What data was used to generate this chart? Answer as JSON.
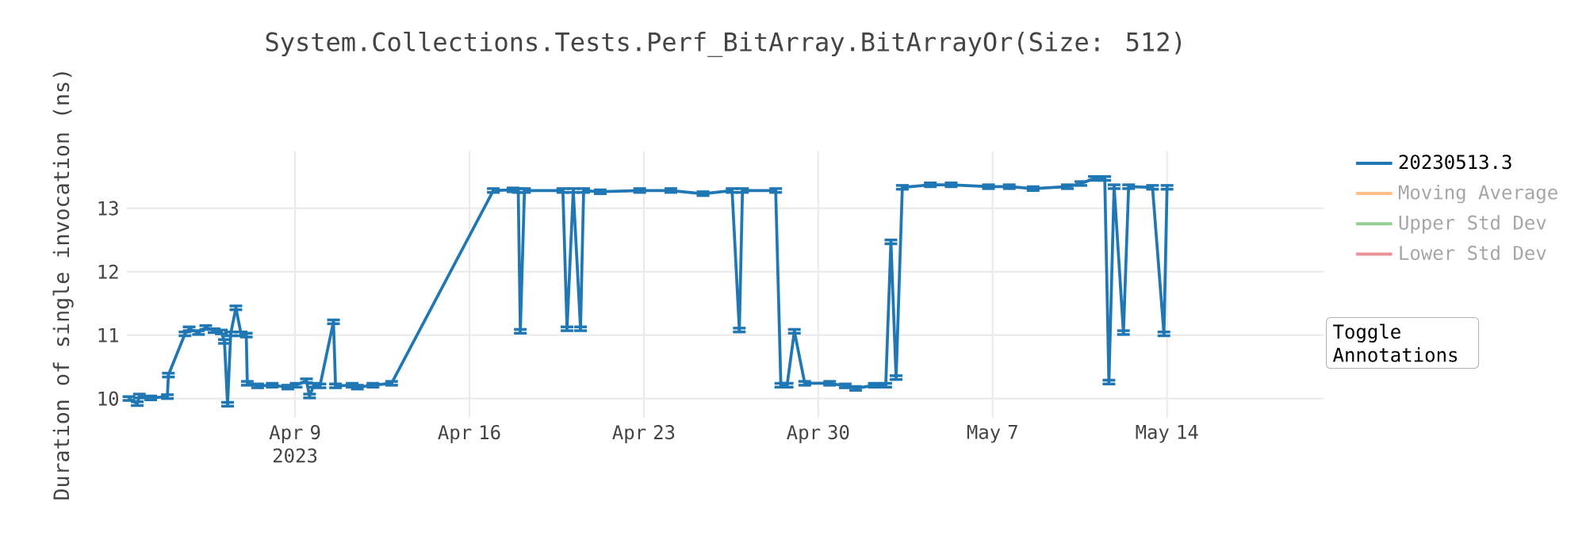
{
  "chart_data": {
    "type": "line",
    "title": "System.Collections.Tests.Perf_BitArray.BitArrayOr(Size: 512)",
    "ylabel": "Duration of single invocation (ns)",
    "x": [
      "2023-04-02T08:00",
      "2023-04-02T16:00",
      "2023-04-02T18:00",
      "2023-04-03T05:00",
      "2023-04-03T21:00",
      "2023-04-03T22:00",
      "2023-04-04T14:00",
      "2023-04-04T18:00",
      "2023-04-05T03:00",
      "2023-04-05T10:00",
      "2023-04-05T18:00",
      "2023-04-06T01:00",
      "2023-04-06T04:00",
      "2023-04-06T07:00",
      "2023-04-06T10:00",
      "2023-04-06T15:00",
      "2023-04-06T20:00",
      "2023-04-07T01:00",
      "2023-04-07T02:00",
      "2023-04-07T12:00",
      "2023-04-08T02:00",
      "2023-04-08T17:00",
      "2023-04-09T01:00",
      "2023-04-09T11:00",
      "2023-04-09T14:00",
      "2023-04-09T18:00",
      "2023-04-10T00:00",
      "2023-04-10T13:00",
      "2023-04-10T15:00",
      "2023-04-11T07:00",
      "2023-04-11T12:00",
      "2023-04-12T03:00",
      "2023-04-12T21:00",
      "2023-04-16T23:00",
      "2023-04-17T18:00",
      "2023-04-17T23:00",
      "2023-04-18T01:00",
      "2023-04-18T05:00",
      "2023-04-19T18:00",
      "2023-04-19T22:00",
      "2023-04-20T04:00",
      "2023-04-20T11:00",
      "2023-04-20T14:00",
      "2023-04-21T06:00",
      "2023-04-22T20:00",
      "2023-04-24T02:00",
      "2023-04-25T09:00",
      "2023-04-26T13:00",
      "2023-04-26T20:00",
      "2023-04-26T23:00",
      "2023-04-28T07:00",
      "2023-04-28T12:00",
      "2023-04-28T18:00",
      "2023-04-29T01:00",
      "2023-04-29T11:00",
      "2023-04-30T11:00",
      "2023-05-01T02:00",
      "2023-05-01T12:00",
      "2023-05-02T06:00",
      "2023-05-02T17:00",
      "2023-05-02T22:00",
      "2023-05-03T03:00",
      "2023-05-03T09:00",
      "2023-05-04T12:00",
      "2023-05-05T08:00",
      "2023-05-06T20:00",
      "2023-05-07T16:00",
      "2023-05-08T15:00",
      "2023-05-10T00:00",
      "2023-05-10T13:00",
      "2023-05-11T02:00",
      "2023-05-11T12:00",
      "2023-05-11T16:00",
      "2023-05-11T21:00",
      "2023-05-12T06:00",
      "2023-05-12T11:00",
      "2023-05-13T10:00",
      "2023-05-13T21:00",
      "2023-05-14T00:00"
    ],
    "series": [
      {
        "name": "20230513.3",
        "color": "#1f77b4",
        "values": [
          10.0,
          9.92,
          10.04,
          10.01,
          10.03,
          10.37,
          11.02,
          11.1,
          11.04,
          11.12,
          11.07,
          11.05,
          10.9,
          9.91,
          11.02,
          11.43,
          11.02,
          11.0,
          10.24,
          10.2,
          10.21,
          10.18,
          10.21,
          10.28,
          10.04,
          10.21,
          10.2,
          11.21,
          10.2,
          10.21,
          10.18,
          10.21,
          10.24,
          13.28,
          13.29,
          13.28,
          11.06,
          13.28,
          13.28,
          11.1,
          13.28,
          11.1,
          13.28,
          13.26,
          13.28,
          13.28,
          13.23,
          13.28,
          11.08,
          13.28,
          13.28,
          10.21,
          10.21,
          11.06,
          10.24,
          10.24,
          10.2,
          10.16,
          10.21,
          10.21,
          12.47,
          10.33,
          13.33,
          13.37,
          13.37,
          13.34,
          13.34,
          13.31,
          13.34,
          13.39,
          13.47,
          13.47,
          10.26,
          13.34,
          11.04,
          13.34,
          13.33,
          11.02,
          13.33
        ],
        "errors": [
          0.03,
          0.03,
          0.03,
          0.03,
          0.03,
          0.03,
          0.03,
          0.03,
          0.03,
          0.03,
          0.03,
          0.03,
          0.03,
          0.03,
          0.03,
          0.03,
          0.03,
          0.03,
          0.03,
          0.03,
          0.03,
          0.03,
          0.03,
          0.03,
          0.03,
          0.03,
          0.03,
          0.03,
          0.03,
          0.03,
          0.03,
          0.03,
          0.03,
          0.03,
          0.03,
          0.03,
          0.03,
          0.03,
          0.03,
          0.03,
          0.03,
          0.03,
          0.03,
          0.03,
          0.03,
          0.03,
          0.03,
          0.03,
          0.03,
          0.03,
          0.03,
          0.03,
          0.03,
          0.03,
          0.03,
          0.03,
          0.03,
          0.03,
          0.03,
          0.03,
          0.03,
          0.03,
          0.03,
          0.03,
          0.03,
          0.03,
          0.03,
          0.03,
          0.03,
          0.03,
          0.03,
          0.03,
          0.03,
          0.03,
          0.03,
          0.03,
          0.03,
          0.03,
          0.03
        ]
      },
      {
        "name": "Moving Average",
        "color": "#ffbf87",
        "values": [
          null,
          null,
          null,
          null,
          null,
          null,
          null,
          null,
          null,
          null,
          null,
          null,
          null,
          null,
          null,
          null,
          null,
          null,
          null,
          null,
          null,
          null,
          null,
          null,
          null,
          null,
          null,
          null,
          null,
          null,
          null,
          null,
          null,
          null,
          null,
          null,
          null,
          null,
          null,
          null,
          null,
          null,
          null,
          null,
          null,
          null,
          null,
          null,
          null,
          null,
          null,
          null,
          null,
          null,
          null,
          null,
          null,
          null,
          null,
          null,
          null,
          null,
          null,
          null,
          null,
          null,
          null,
          null,
          null,
          null,
          null,
          null,
          null,
          null,
          null,
          null,
          null,
          null,
          null
        ]
      },
      {
        "name": "Upper Std Dev",
        "color": "#95cf95",
        "values": [
          null,
          null,
          null,
          null,
          null,
          null,
          null,
          null,
          null,
          null,
          null,
          null,
          null,
          null,
          null,
          null,
          null,
          null,
          null,
          null,
          null,
          null,
          null,
          null,
          null,
          null,
          null,
          null,
          null,
          null,
          null,
          null,
          null,
          null,
          null,
          null,
          null,
          null,
          null,
          null,
          null,
          null,
          null,
          null,
          null,
          null,
          null,
          null,
          null,
          null,
          null,
          null,
          null,
          null,
          null,
          null,
          null,
          null,
          null,
          null,
          null,
          null,
          null,
          null,
          null,
          null,
          null,
          null,
          null,
          null,
          null,
          null,
          null,
          null,
          null,
          null,
          null,
          null,
          null
        ]
      },
      {
        "name": "Lower Std Dev",
        "color": "#eb9394",
        "values": [
          null,
          null,
          null,
          null,
          null,
          null,
          null,
          null,
          null,
          null,
          null,
          null,
          null,
          null,
          null,
          null,
          null,
          null,
          null,
          null,
          null,
          null,
          null,
          null,
          null,
          null,
          null,
          null,
          null,
          null,
          null,
          null,
          null,
          null,
          null,
          null,
          null,
          null,
          null,
          null,
          null,
          null,
          null,
          null,
          null,
          null,
          null,
          null,
          null,
          null,
          null,
          null,
          null,
          null,
          null,
          null,
          null,
          null,
          null,
          null,
          null,
          null,
          null,
          null,
          null,
          null,
          null,
          null,
          null,
          null,
          null,
          null,
          null,
          null,
          null,
          null,
          null,
          null,
          null
        ]
      }
    ],
    "xlim": [
      "2023-04-02T06:00",
      "2023-05-20T07:00"
    ],
    "xticks": [
      {
        "value": "2023-04-09",
        "label": "Apr 9 2023"
      },
      {
        "value": "2023-04-16",
        "label": "Apr 16"
      },
      {
        "value": "2023-04-23",
        "label": "Apr 23"
      },
      {
        "value": "2023-04-30",
        "label": "Apr 30"
      },
      {
        "value": "2023-05-07",
        "label": "May 7"
      },
      {
        "value": "2023-05-14",
        "label": "May 14"
      }
    ],
    "ylim": [
      9.7,
      13.9
    ],
    "yticks": [
      10,
      11,
      12,
      13
    ],
    "grid": true,
    "legend": "top right",
    "marker": "none",
    "line_style": "solid",
    "annotations": [
      "Toggle Annotations"
    ]
  }
}
